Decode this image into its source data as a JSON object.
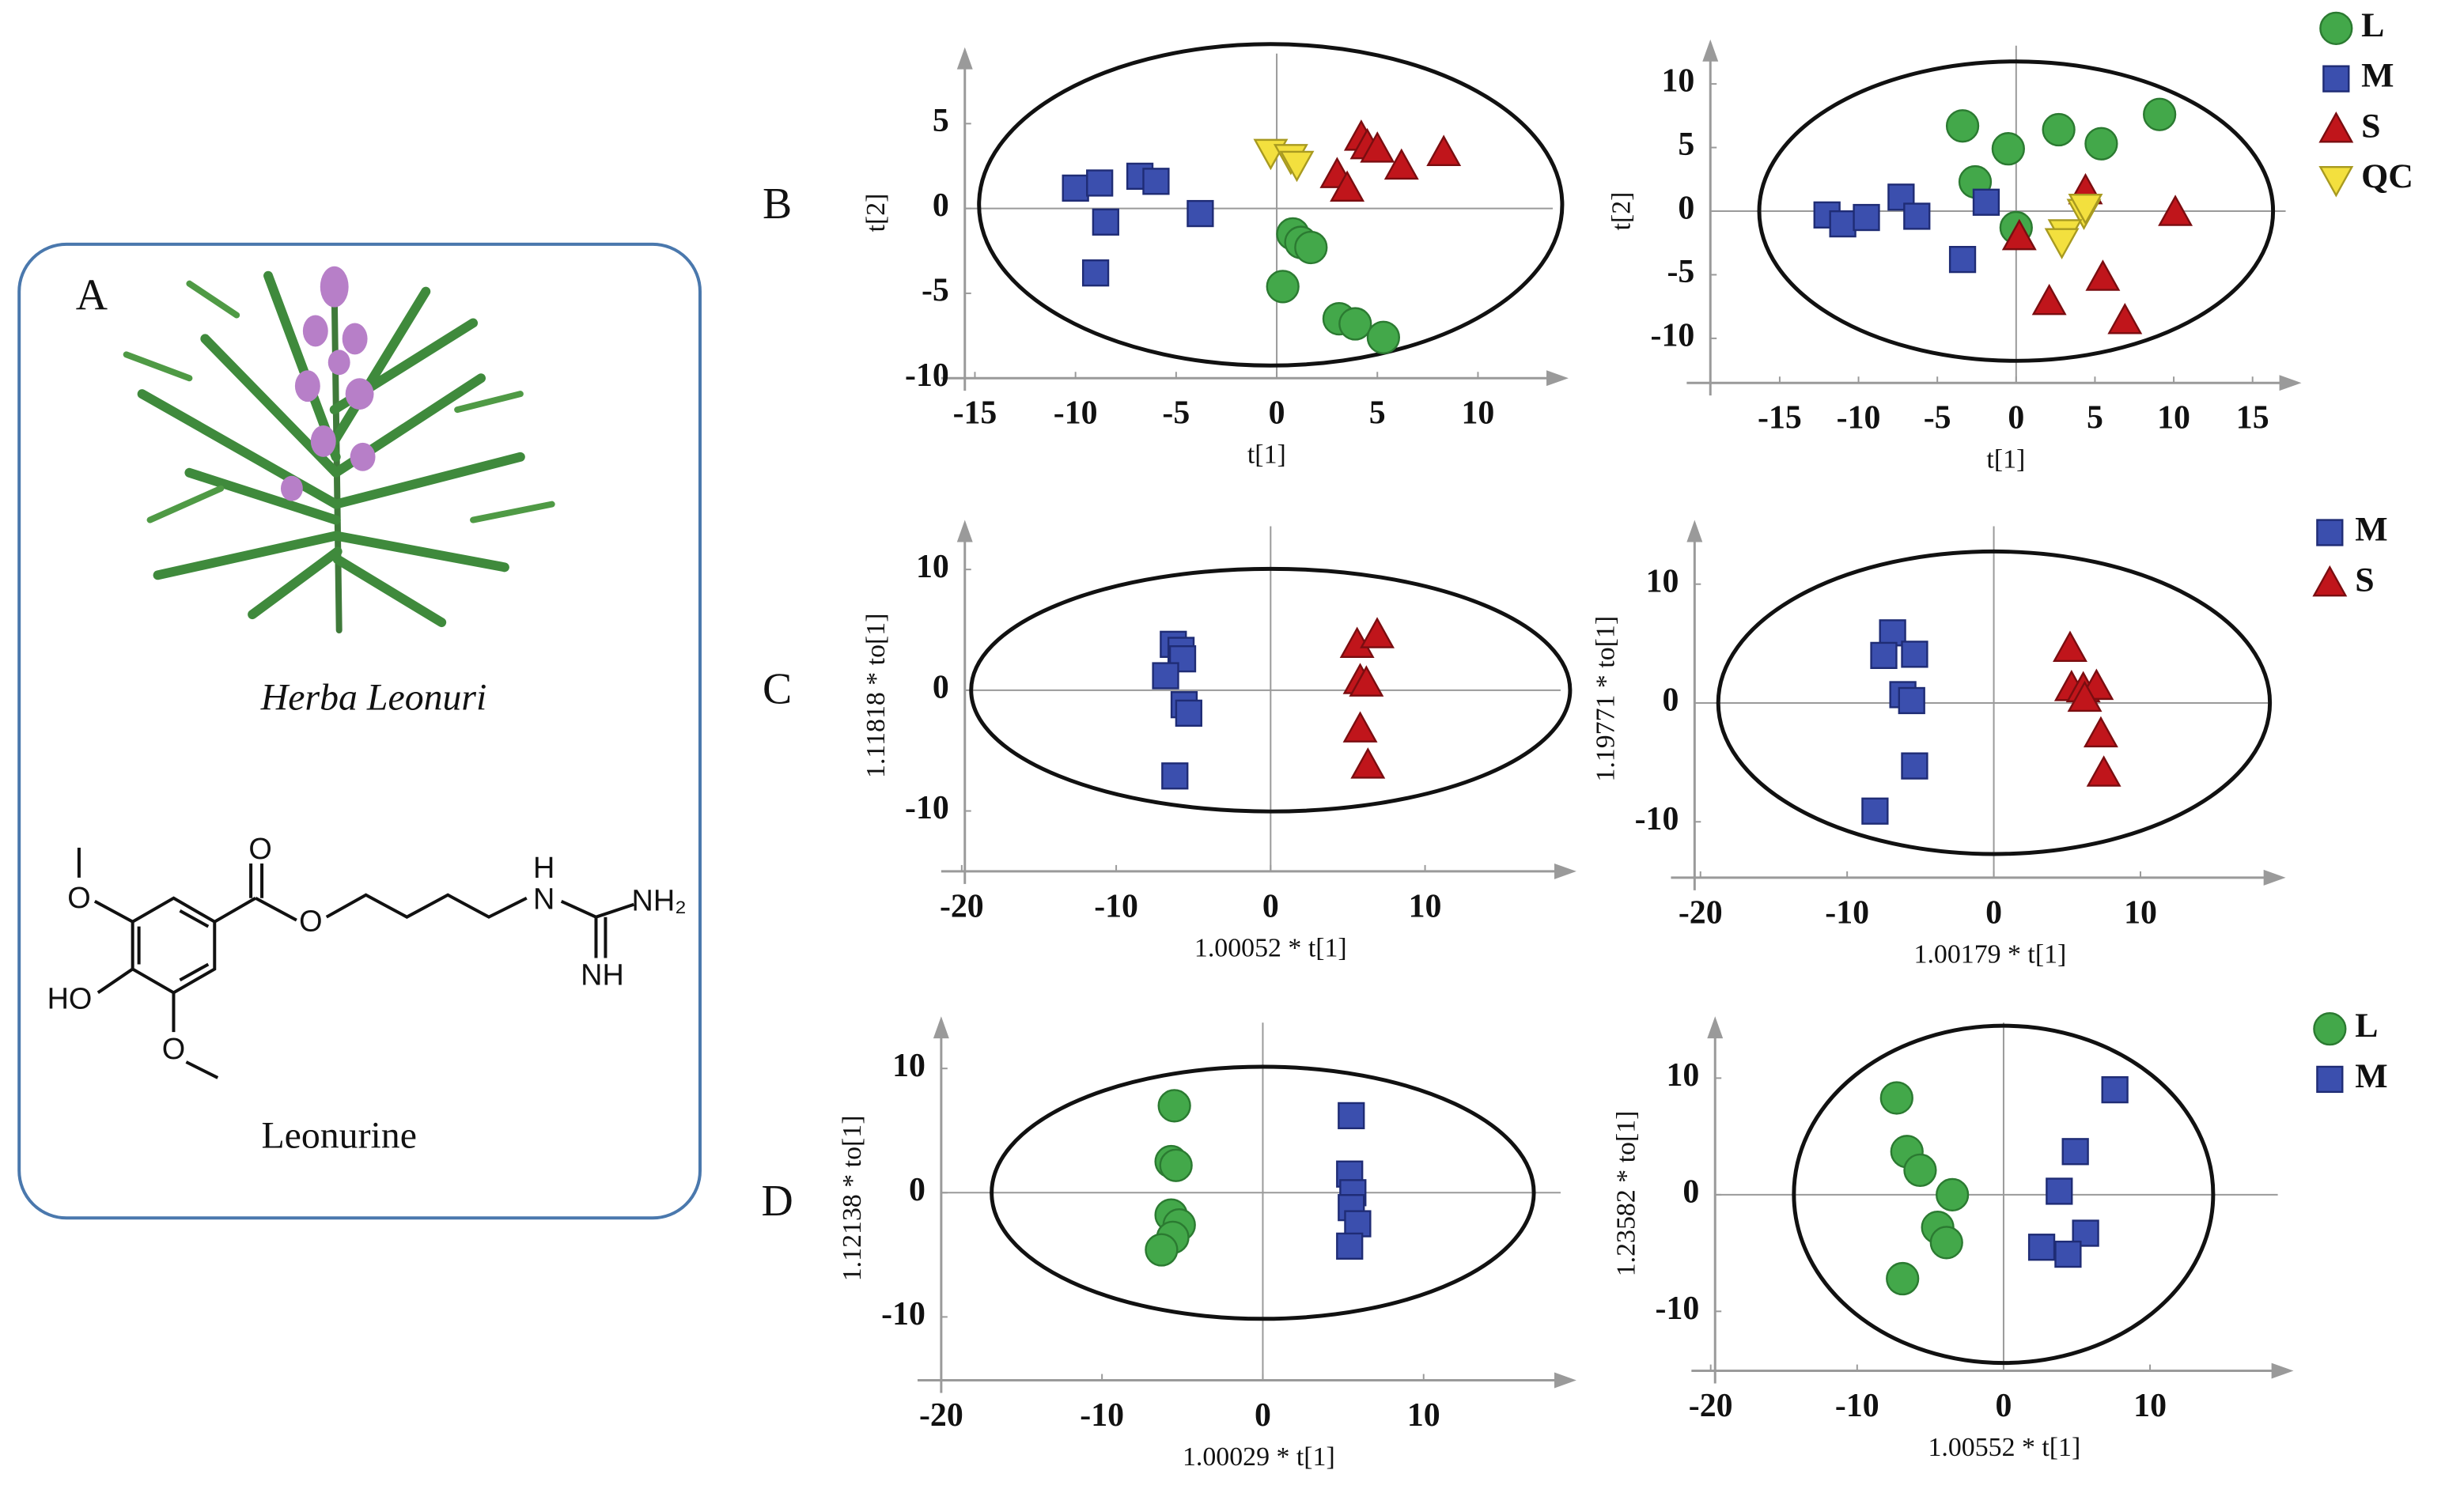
{
  "panels": [
    "A",
    "B",
    "C",
    "D"
  ],
  "panel_a": {
    "caption": "Herba Leonuri",
    "compound": "Leonurine",
    "structure_labels": [
      "O",
      "HO",
      "O",
      "O",
      "O",
      "H",
      "N",
      "NH₂",
      "NH"
    ]
  },
  "chart_data": [
    {
      "type": "scatter",
      "xlabel": "t[1]",
      "ylabel": "t[2]",
      "xlim": [
        -15.5,
        14.5
      ],
      "ylim": [
        -10,
        9.5
      ],
      "xticks": [
        -15,
        -10,
        -5,
        0,
        5,
        10
      ],
      "yticks": [
        -10,
        -5,
        0,
        5
      ],
      "series": [
        {
          "name": "L",
          "color": "#43a84a",
          "marker": "circle",
          "x": [
            0.8,
            1.2,
            1.7,
            0.3,
            3.1,
            3.9,
            5.3
          ],
          "y": [
            -1.5,
            -2,
            -2.3,
            -4.6,
            -6.5,
            -6.8,
            -7.6
          ]
        },
        {
          "name": "M",
          "color": "#3b4fae",
          "marker": "square",
          "x": [
            -10,
            -8.8,
            -8.5,
            -6.8,
            -6,
            -3.8,
            -9
          ],
          "y": [
            1.2,
            1.5,
            -0.8,
            1.9,
            1.6,
            -0.3,
            -3.8
          ]
        },
        {
          "name": "S",
          "color": "#c0151b",
          "marker": "triangle",
          "x": [
            3,
            4.2,
            4.5,
            5,
            3.5,
            6.2,
            8.3
          ],
          "y": [
            2,
            4.2,
            3.7,
            3.5,
            1.2,
            2.5,
            3.3
          ]
        },
        {
          "name": "QC",
          "color": "#f3e03e",
          "marker": "triangle-down",
          "x": [
            -0.3,
            0.7,
            1
          ],
          "y": [
            3.3,
            3.0,
            2.6
          ]
        }
      ]
    },
    {
      "type": "scatter",
      "xlabel": "t[1]",
      "ylabel": "t[2]",
      "xlim": [
        -19.4,
        18.1
      ],
      "ylim": [
        -13.5,
        13.5
      ],
      "xticks": [
        -15,
        -10,
        -5,
        0,
        5,
        10,
        15
      ],
      "yticks": [
        -10,
        -5,
        0,
        5,
        10
      ],
      "legend": "outside-right",
      "series": [
        {
          "name": "L",
          "color": "#43a84a",
          "marker": "circle",
          "x": [
            -3.4,
            2.7,
            9.1,
            -0.5,
            5.4,
            -2.6,
            0
          ],
          "y": [
            6.7,
            6.4,
            7.6,
            4.9,
            5.3,
            2.3,
            -1.3
          ]
        },
        {
          "name": "M",
          "color": "#3b4fae",
          "marker": "square",
          "x": [
            -12,
            -11,
            -9.5,
            -7.3,
            -6.3,
            -3.4,
            -1.9
          ],
          "y": [
            -0.3,
            -1,
            -0.5,
            1.1,
            -0.4,
            -3.8,
            0.7
          ]
        },
        {
          "name": "S",
          "color": "#c0151b",
          "marker": "triangle",
          "x": [
            0.2,
            4.4,
            10.1,
            2.1,
            5.5,
            6.9
          ],
          "y": [
            -2,
            1.6,
            -0.1,
            -7.1,
            -5.2,
            -8.6
          ]
        },
        {
          "name": "QC",
          "color": "#f3e03e",
          "marker": "triangle-down",
          "x": [
            4.3,
            3.1,
            2.9,
            4.4
          ],
          "y": [
            -0.1,
            -1.7,
            -2.4,
            0.3
          ]
        }
      ]
    },
    {
      "type": "scatter",
      "xlabel": "1.00052 * t[1]",
      "ylabel": "1.11818 * to[1]",
      "xlim": [
        -19.8,
        19.8
      ],
      "ylim": [
        -15,
        14.1
      ],
      "xticks": [
        -20,
        -10,
        0,
        10
      ],
      "yticks": [
        -10,
        0,
        10
      ],
      "series": [
        {
          "name": "M",
          "color": "#3b4fae",
          "marker": "square",
          "x": [
            -6.3,
            -5.8,
            -5.7,
            -6.8,
            -5.6,
            -5.3,
            -6.2
          ],
          "y": [
            3.8,
            3.3,
            2.6,
            1.2,
            -1.2,
            -1.9,
            -7.1
          ]
        },
        {
          "name": "S",
          "color": "#c0151b",
          "marker": "triangle",
          "x": [
            5.6,
            6.9,
            5.8,
            6.2,
            5.8,
            6.3
          ],
          "y": [
            3.8,
            4.6,
            0.8,
            0.6,
            -3.2,
            -6.2
          ]
        }
      ]
    },
    {
      "type": "scatter",
      "xlabel": "1.00179 * t[1]",
      "ylabel": "1.19771 * to[1]",
      "xlim": [
        -20.4,
        19.9
      ],
      "ylim": [
        -14.7,
        15.4
      ],
      "xticks": [
        -20,
        -10,
        0,
        10
      ],
      "yticks": [
        -10,
        0,
        10
      ],
      "legend": "outside-right",
      "series": [
        {
          "name": "M",
          "color": "#3b4fae",
          "marker": "square",
          "x": [
            -6.9,
            -7.5,
            -5.4,
            -6.2,
            -5.6,
            -5.4,
            -8.1
          ],
          "y": [
            5.9,
            4,
            4.1,
            0.7,
            0.2,
            -5.3,
            -9.1
          ]
        },
        {
          "name": "S",
          "color": "#c0151b",
          "marker": "triangle",
          "x": [
            5.2,
            5.3,
            6.1,
            7,
            6.2,
            7.3,
            7.5
          ],
          "y": [
            4.6,
            1.3,
            1.2,
            1.4,
            0.4,
            -2.6,
            -5.9
          ]
        }
      ]
    },
    {
      "type": "scatter",
      "xlabel": "1.00029 * t[1]",
      "ylabel": "1.12138 * to[1]",
      "xlim": [
        -20,
        19.5
      ],
      "ylim": [
        -15.1,
        14.2
      ],
      "xticks": [
        -20,
        -10,
        0,
        10
      ],
      "yticks": [
        -10,
        0,
        10
      ],
      "series": [
        {
          "name": "L",
          "color": "#43a84a",
          "marker": "circle",
          "x": [
            -5.5,
            -5.7,
            -5.4,
            -5.7,
            -5.2,
            -5.6,
            -6.3
          ],
          "y": [
            7,
            2.5,
            2.2,
            -1.8,
            -2.6,
            -3.6,
            -4.6
          ]
        },
        {
          "name": "M",
          "color": "#3b4fae",
          "marker": "square",
          "x": [
            5.5,
            5.4,
            5.6,
            5.5,
            5.9,
            5.4
          ],
          "y": [
            6.2,
            1.5,
            0,
            -1.2,
            -2.5,
            -4.3
          ]
        }
      ]
    },
    {
      "type": "scatter",
      "xlabel": "1.00552 * t[1]",
      "ylabel": "1.23582 * to[1]",
      "xlim": [
        -19.7,
        19.8
      ],
      "ylim": [
        -15.1,
        15.3
      ],
      "xticks": [
        -20,
        -10,
        0,
        10
      ],
      "yticks": [
        -10,
        0,
        10
      ],
      "legend": "outside-right",
      "series": [
        {
          "name": "L",
          "color": "#43a84a",
          "marker": "circle",
          "x": [
            -7.3,
            -6.6,
            -5.7,
            -3.5,
            -4.5,
            -3.9,
            -6.9
          ],
          "y": [
            8.3,
            3.7,
            2.1,
            0,
            -2.8,
            -4.1,
            -7.2
          ]
        },
        {
          "name": "M",
          "color": "#3b4fae",
          "marker": "square",
          "x": [
            7.6,
            4.9,
            3.8,
            5.6,
            2.6,
            4.4
          ],
          "y": [
            9,
            3.7,
            0.3,
            -3.3,
            -4.5,
            -5.1
          ]
        }
      ]
    }
  ]
}
